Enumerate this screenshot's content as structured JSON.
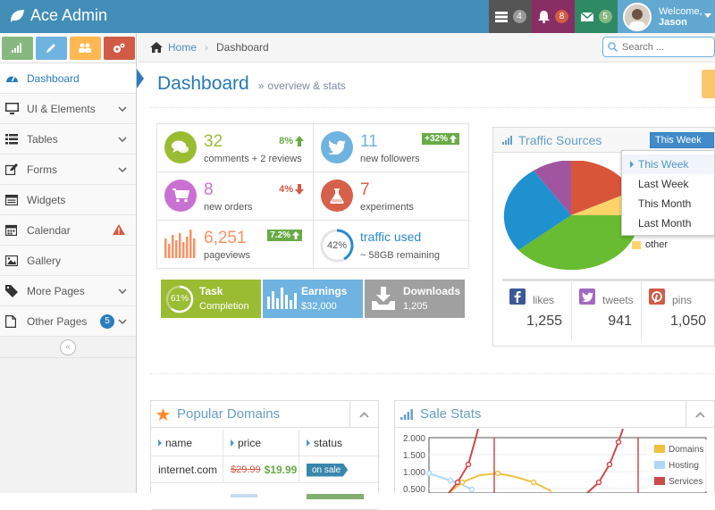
{
  "navbar": {
    "brand": "Ace Admin",
    "tasks_count": "4",
    "notifications_count": "8",
    "messages_count": "5",
    "welcome_line1": "Welcome,",
    "welcome_line2": "Jason"
  },
  "sidebar": {
    "items": [
      {
        "label": "Dashboard",
        "icon": "tachometer-icon",
        "active": true
      },
      {
        "label": "UI & Elements",
        "icon": "desktop-icon"
      },
      {
        "label": "Tables",
        "icon": "list-icon"
      },
      {
        "label": "Forms",
        "icon": "edit-icon"
      },
      {
        "label": "Widgets",
        "icon": "widgets-icon"
      },
      {
        "label": "Calendar",
        "icon": "calendar-icon"
      },
      {
        "label": "Gallery",
        "icon": "image-icon"
      },
      {
        "label": "More Pages",
        "icon": "tag-icon"
      },
      {
        "label": "Other Pages",
        "icon": "file-icon",
        "badge": "5"
      }
    ]
  },
  "breadcrumb": {
    "home": "Home",
    "current": "Dashboard"
  },
  "search": {
    "placeholder": "Search ..."
  },
  "page": {
    "title": "Dashboard",
    "subtitle": "overview & stats"
  },
  "infoboxes": {
    "comments": {
      "number": "32",
      "label": "comments + 2 reviews",
      "stat": "8%"
    },
    "followers": {
      "number": "11",
      "label": "new followers",
      "badge": "+32%"
    },
    "orders": {
      "number": "8",
      "label": "new orders",
      "stat": "4%"
    },
    "experiments": {
      "number": "7",
      "label": "experiments"
    },
    "pageviews": {
      "number": "6,251",
      "label": "pageviews",
      "badge": "7.2%"
    },
    "traffic": {
      "percent": "42%",
      "label": "traffic used",
      "sub": "~ 58GB remaining"
    }
  },
  "tiles": {
    "task": {
      "percent": "61%",
      "title": "Task",
      "sub": "Completion"
    },
    "earnings": {
      "title": "Earnings",
      "sub": "$32,000"
    },
    "downloads": {
      "title": "Downloads",
      "sub": "1,205"
    }
  },
  "traffic_sources": {
    "title": "Traffic Sources",
    "selected": "This Week",
    "options": [
      "This Week",
      "Last Week",
      "This Month",
      "Last Month"
    ],
    "legend_visible": "other"
  },
  "social": {
    "likes": {
      "label": "likes",
      "count": "1,255"
    },
    "tweets": {
      "label": "tweets",
      "count": "941"
    },
    "pins": {
      "label": "pins",
      "count": "1,050"
    }
  },
  "popular_domains": {
    "title": "Popular Domains",
    "headers": [
      "name",
      "price",
      "status"
    ],
    "rows": [
      {
        "name": "internet.com",
        "old_price": "$29.99",
        "price": "$19.99",
        "status": "on sale"
      }
    ]
  },
  "sale_stats": {
    "title": "Sale Stats",
    "legend": [
      "Domains",
      "Hosting",
      "Services"
    ]
  },
  "chart_data": {
    "type": "line",
    "y_ticks": [
      "2.000",
      "1.500",
      "1.000",
      "0.500"
    ],
    "series": [
      {
        "name": "Domains",
        "color": "#edc240"
      },
      {
        "name": "Hosting",
        "color": "#afd8f8"
      },
      {
        "name": "Services",
        "color": "#cb4b4b"
      }
    ]
  },
  "colors": {
    "navbar": "#438eb9",
    "accent": "#2679b5"
  }
}
